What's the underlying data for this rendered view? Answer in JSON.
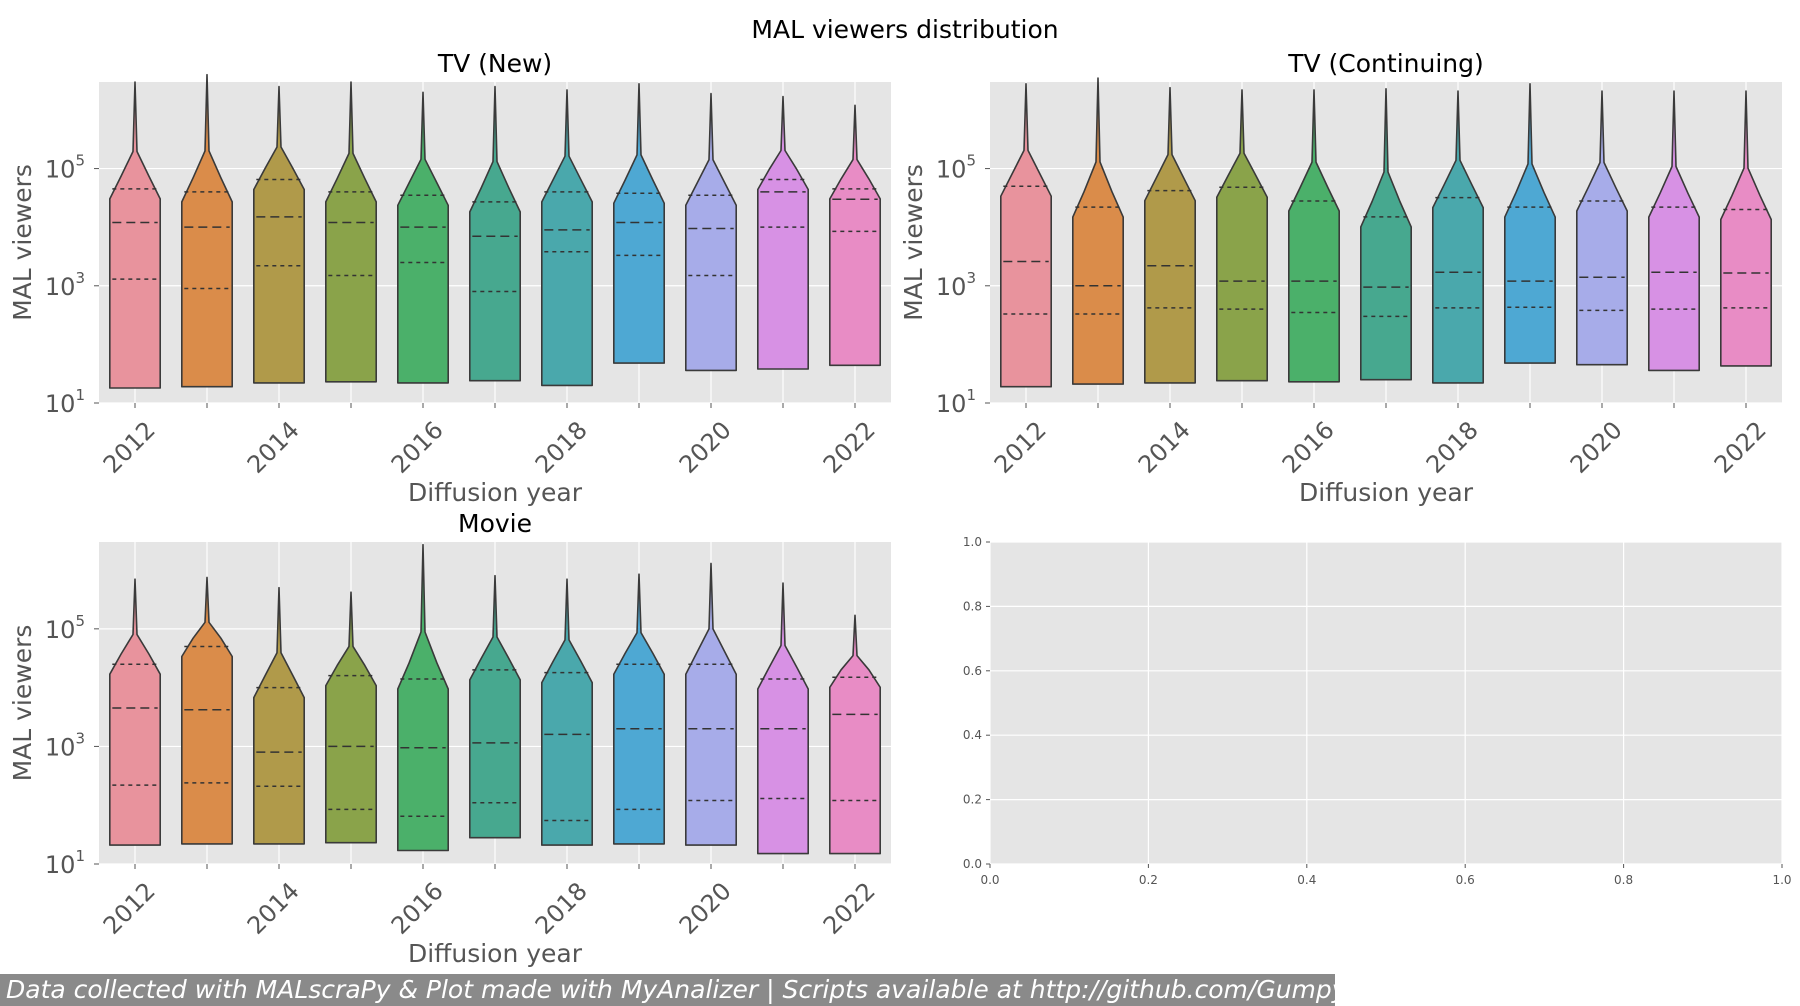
{
  "figure": {
    "suptitle": "MAL viewers distribution",
    "footer": "Data collected with MALscraPy & Plot made with MyAnalizer | Scripts available at http://github.com/Gumpy-Q"
  },
  "chart_data": [
    {
      "type": "violin",
      "title": "TV (New)",
      "xlabel": "Diffusion year",
      "ylabel": "MAL viewers",
      "y_scale": "log",
      "ylim": [
        10,
        3000000
      ],
      "y_ticks": [
        10,
        1000,
        100000
      ],
      "y_tick_labels": [
        "10",
        "10",
        "10"
      ],
      "y_tick_exponents": [
        "1",
        "3",
        "5"
      ],
      "categories": [
        "2012",
        "2013",
        "2014",
        "2015",
        "2016",
        "2017",
        "2018",
        "2019",
        "2020",
        "2021",
        "2022"
      ],
      "x_tick_labels": [
        "2012",
        "",
        "2014",
        "",
        "2016",
        "",
        "2018",
        "",
        "2020",
        "",
        "2022"
      ],
      "colors": [
        "#e8939d",
        "#da8c4a",
        "#b09a4a",
        "#8aa34a",
        "#4bb06a",
        "#47a88f",
        "#4aa8ac",
        "#4ea8d3",
        "#a7ace9",
        "#d791e4",
        "#e88cc5"
      ],
      "min": [
        18,
        19,
        22,
        23,
        22,
        24,
        20,
        48,
        36,
        38,
        44
      ],
      "q1": [
        1300,
        900,
        2200,
        1500,
        2500,
        800,
        3800,
        3300,
        1500,
        10000,
        8500
      ],
      "median": [
        12000,
        10000,
        15000,
        12000,
        10000,
        7000,
        9000,
        12000,
        9500,
        40000,
        30000
      ],
      "q3": [
        45000,
        40000,
        65000,
        40000,
        35000,
        27000,
        40000,
        38000,
        35000,
        65000,
        45000
      ],
      "max": [
        3000000,
        4000000,
        2500000,
        3000000,
        2000000,
        2500000,
        2200000,
        2800000,
        1900000,
        1700000,
        1200000
      ]
    },
    {
      "type": "violin",
      "title": "TV (Continuing)",
      "xlabel": "Diffusion year",
      "ylabel": "MAL viewers",
      "y_scale": "log",
      "ylim": [
        10,
        3000000
      ],
      "y_ticks": [
        10,
        1000,
        100000
      ],
      "y_tick_labels": [
        "10",
        "10",
        "10"
      ],
      "y_tick_exponents": [
        "1",
        "3",
        "5"
      ],
      "categories": [
        "2012",
        "2013",
        "2014",
        "2015",
        "2016",
        "2017",
        "2018",
        "2019",
        "2020",
        "2021",
        "2022"
      ],
      "x_tick_labels": [
        "2012",
        "",
        "2014",
        "",
        "2016",
        "",
        "2018",
        "",
        "2020",
        "",
        "2022"
      ],
      "colors": [
        "#e8939d",
        "#da8c4a",
        "#b09a4a",
        "#8aa34a",
        "#4bb06a",
        "#47a88f",
        "#4aa8ac",
        "#4ea8d3",
        "#a7ace9",
        "#d791e4",
        "#e88cc5"
      ],
      "min": [
        19,
        21,
        22,
        24,
        23,
        25,
        22,
        48,
        45,
        36,
        43
      ],
      "q1": [
        330,
        330,
        420,
        400,
        350,
        300,
        420,
        430,
        380,
        400,
        420
      ],
      "median": [
        2600,
        1000,
        2200,
        1200,
        1200,
        950,
        1700,
        1200,
        1400,
        1700,
        1650
      ],
      "q3": [
        50000,
        22000,
        42000,
        48000,
        28000,
        15000,
        32000,
        22000,
        28000,
        22000,
        20000
      ],
      "max": [
        2800000,
        3500000,
        2400000,
        2200000,
        2200000,
        2300000,
        2100000,
        2800000,
        2100000,
        2100000,
        2100000
      ]
    },
    {
      "type": "violin",
      "title": "Movie",
      "xlabel": "Diffusion year",
      "ylabel": "MAL viewers",
      "y_scale": "log",
      "ylim": [
        10,
        3000000
      ],
      "y_ticks": [
        10,
        1000,
        100000
      ],
      "y_tick_labels": [
        "10",
        "10",
        "10"
      ],
      "y_tick_exponents": [
        "1",
        "3",
        "5"
      ],
      "categories": [
        "2012",
        "2013",
        "2014",
        "2015",
        "2016",
        "2017",
        "2018",
        "2019",
        "2020",
        "2021",
        "2022"
      ],
      "x_tick_labels": [
        "2012",
        "",
        "2014",
        "",
        "2016",
        "",
        "2018",
        "",
        "2020",
        "",
        "2022"
      ],
      "colors": [
        "#e8939d",
        "#da8c4a",
        "#b09a4a",
        "#8aa34a",
        "#4bb06a",
        "#47a88f",
        "#4aa8ac",
        "#4ea8d3",
        "#a7ace9",
        "#d791e4",
        "#e88cc5"
      ],
      "min": [
        21,
        22,
        22,
        23,
        17,
        28,
        21,
        22,
        21,
        15,
        15
      ],
      "q1": [
        220,
        240,
        210,
        85,
        65,
        110,
        55,
        85,
        120,
        130,
        120
      ],
      "median": [
        4500,
        4200,
        800,
        1000,
        950,
        1150,
        1600,
        2000,
        2000,
        2000,
        3500
      ],
      "q3": [
        25000,
        50000,
        10000,
        16000,
        14000,
        20000,
        18000,
        25000,
        25000,
        14000,
        15000
      ],
      "max": [
        700000,
        750000,
        500000,
        420000,
        2700000,
        800000,
        700000,
        850000,
        1300000,
        600000,
        170000
      ]
    },
    {
      "type": "empty",
      "xlim": [
        0,
        1
      ],
      "ylim": [
        0,
        1
      ],
      "x_tick_labels": [
        "0.0",
        "0.2",
        "0.4",
        "0.6",
        "0.8",
        "1.0"
      ],
      "y_tick_labels": [
        "0.0",
        "0.2",
        "0.4",
        "0.6",
        "0.8",
        "1.0"
      ]
    }
  ]
}
